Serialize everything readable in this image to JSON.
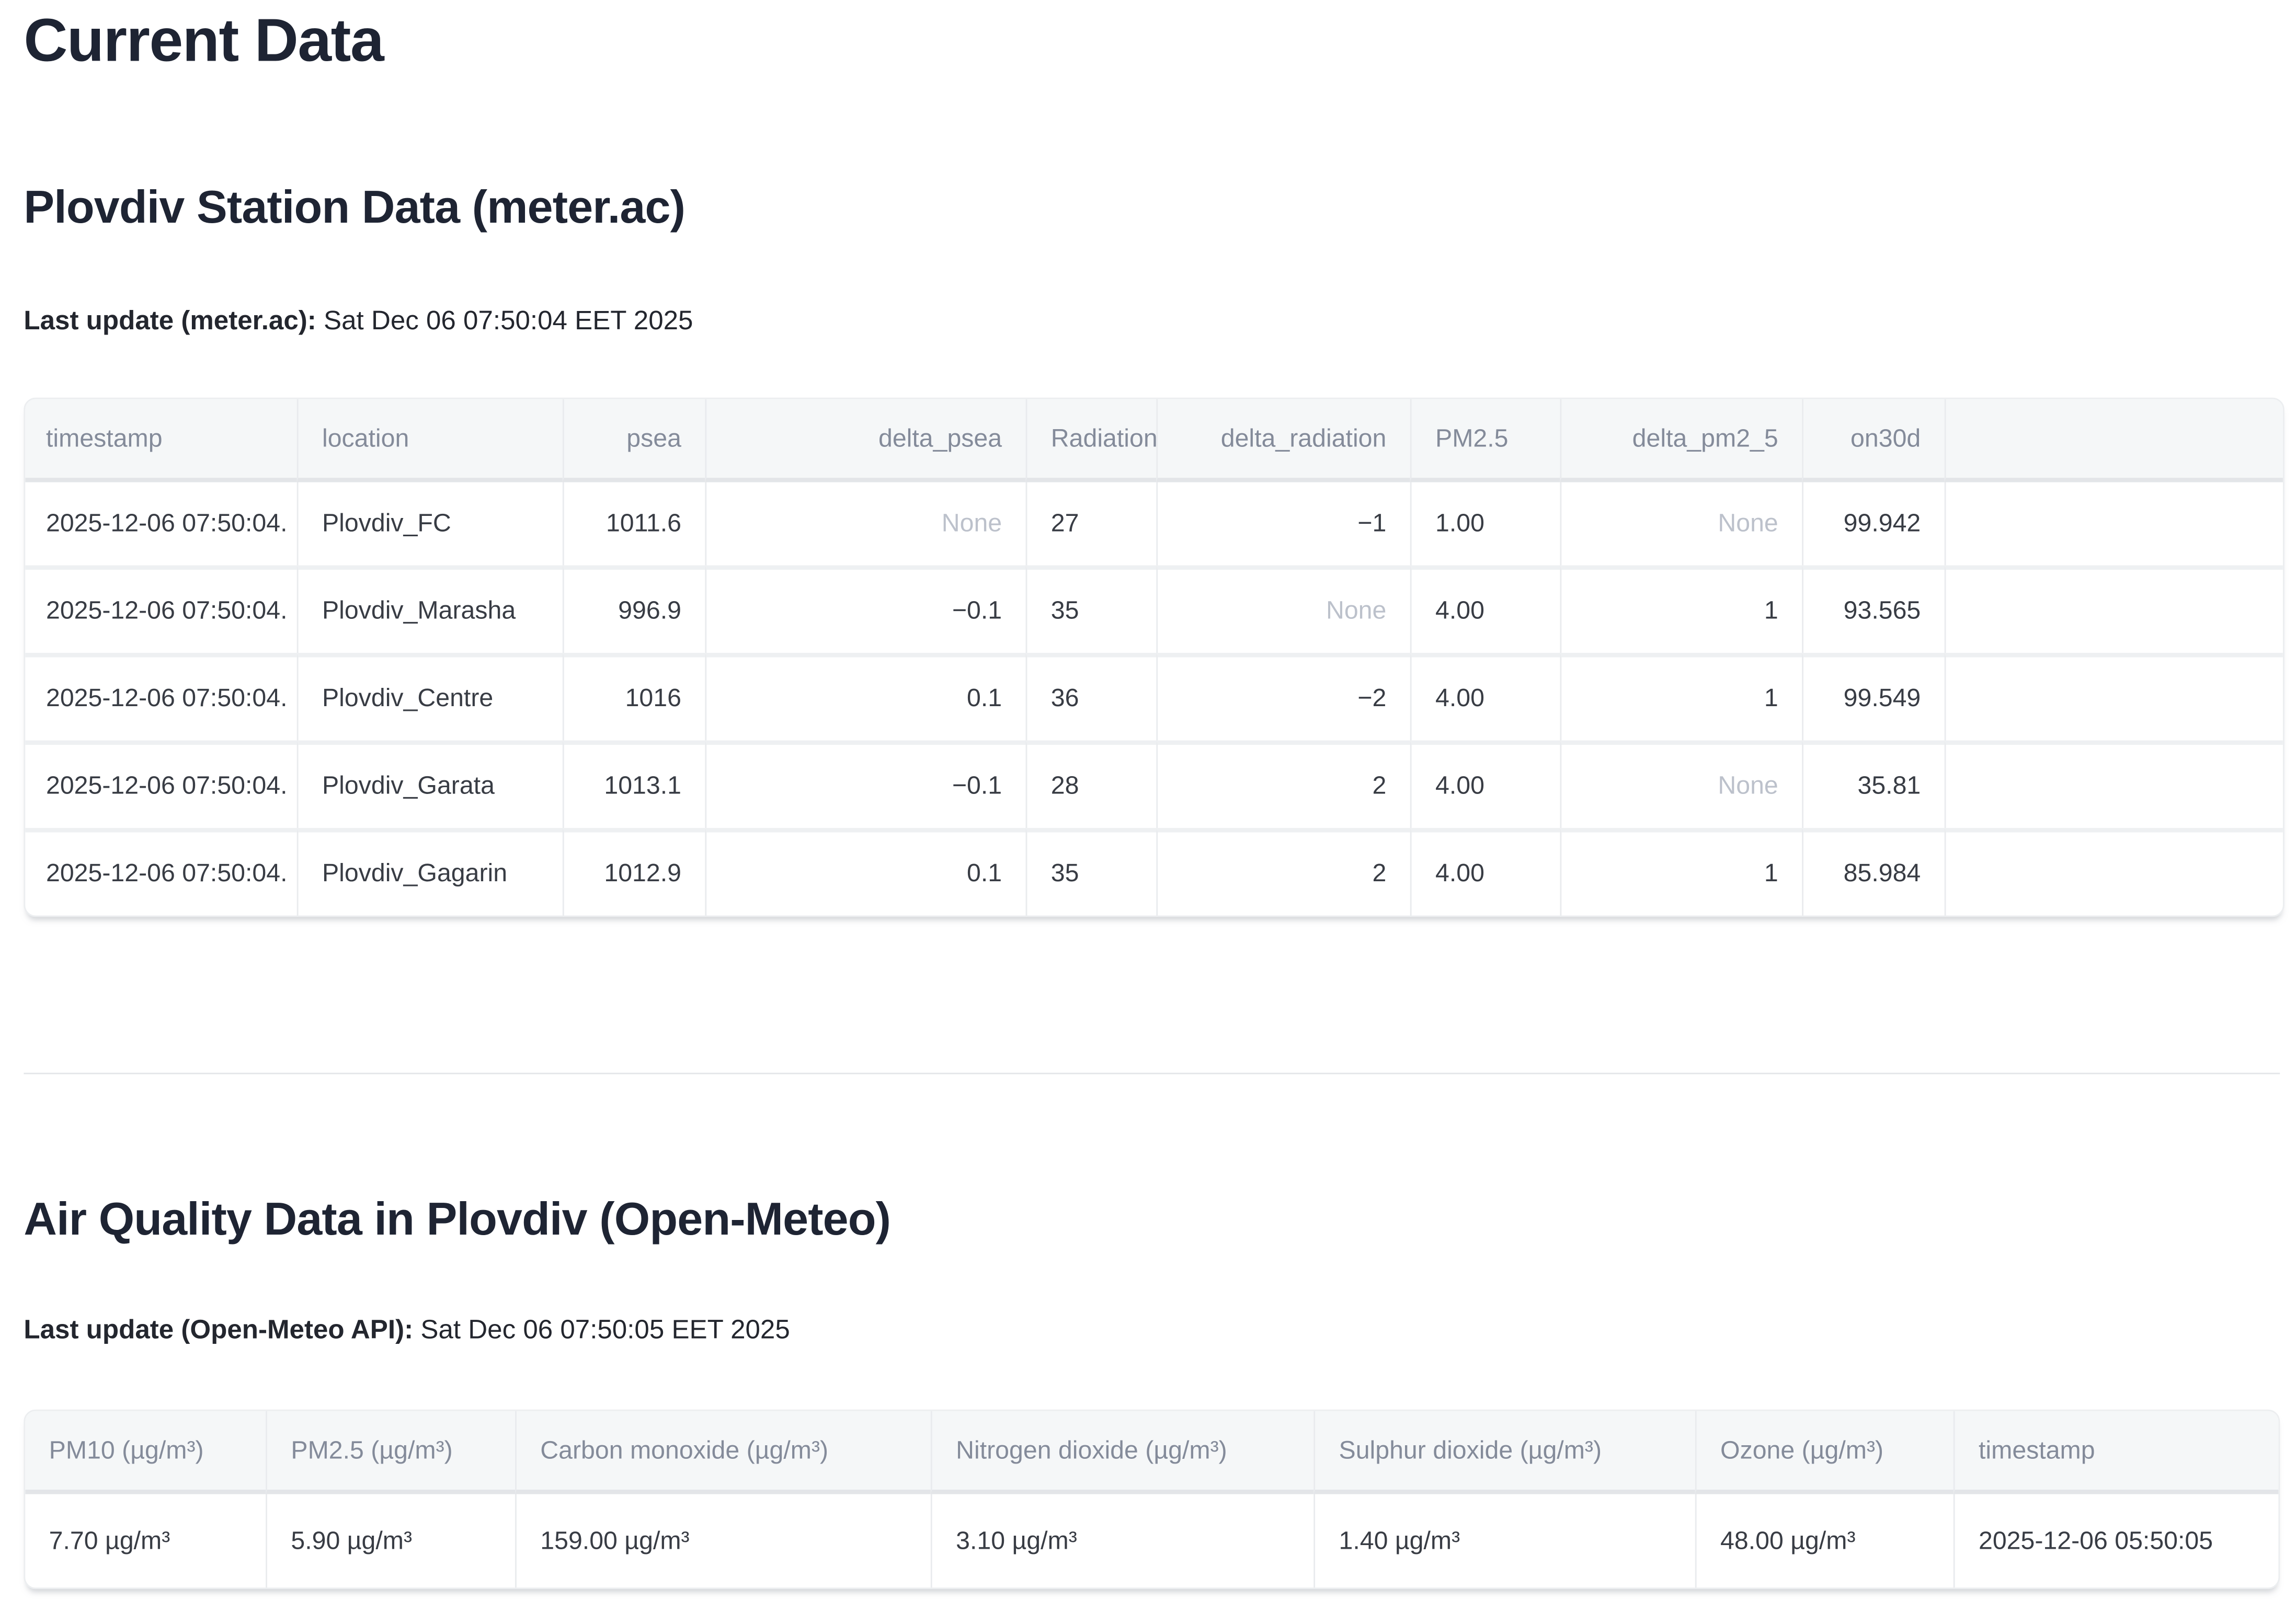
{
  "page": {
    "title": "Current Data"
  },
  "colors": {
    "heading_text": "#1e2433",
    "table_header_bg": "#f5f7f8",
    "table_header_text": "#848b9a",
    "none_value_text": "#bcc1cb"
  },
  "station_section": {
    "heading": "Plovdiv Station Data (meter.ac)",
    "last_update_label": "Last update (meter.ac):",
    "last_update_value": "Sat Dec 06 07:50:04 EET 2025",
    "table": {
      "columns": [
        "timestamp",
        "location",
        "psea",
        "delta_psea",
        "Radiation",
        "delta_radiation",
        "PM2.5",
        "delta_pm2_5",
        "on30d",
        ""
      ],
      "rows": [
        [
          "2025-12-06 07:50:04.",
          "Plovdiv_FC",
          "1011.6",
          "None",
          "27",
          "−1",
          "1.00",
          "None",
          "99.942",
          ""
        ],
        [
          "2025-12-06 07:50:04.",
          "Plovdiv_Marasha",
          "996.9",
          "−0.1",
          "35",
          "None",
          "4.00",
          "1",
          "93.565",
          ""
        ],
        [
          "2025-12-06 07:50:04.",
          "Plovdiv_Centre",
          "1016",
          "0.1",
          "36",
          "−2",
          "4.00",
          "1",
          "99.549",
          ""
        ],
        [
          "2025-12-06 07:50:04.",
          "Plovdiv_Garata",
          "1013.1",
          "−0.1",
          "28",
          "2",
          "4.00",
          "None",
          "35.81",
          ""
        ],
        [
          "2025-12-06 07:50:04.",
          "Plovdiv_Gagarin",
          "1012.9",
          "0.1",
          "35",
          "2",
          "4.00",
          "1",
          "85.984",
          ""
        ]
      ]
    }
  },
  "air_quality_section": {
    "heading": "Air Quality Data in Plovdiv (Open-Meteo)",
    "last_update_label": "Last update (Open-Meteo API):",
    "last_update_value": "Sat Dec 06 07:50:05 EET 2025",
    "table": {
      "columns": [
        "PM10 (µg/m³)",
        "PM2.5 (µg/m³)",
        "Carbon monoxide (µg/m³)",
        "Nitrogen dioxide (µg/m³)",
        "Sulphur dioxide (µg/m³)",
        "Ozone (µg/m³)",
        "timestamp"
      ],
      "rows": [
        [
          "7.70 µg/m³",
          "5.90 µg/m³",
          "159.00 µg/m³",
          "3.10 µg/m³",
          "1.40 µg/m³",
          "48.00 µg/m³",
          "2025-12-06 05:50:05"
        ]
      ]
    }
  }
}
